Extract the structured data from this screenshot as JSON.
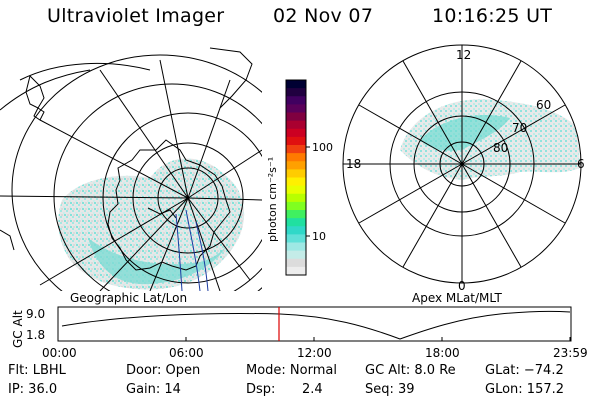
{
  "header": {
    "instrument": "Ultraviolet Imager",
    "date": "02 Nov 07",
    "time": "10:16:25 UT"
  },
  "colorbar": {
    "unit_label": "photon cm⁻²s⁻¹",
    "ticks": [
      "100",
      "10"
    ],
    "colors": [
      "#000033",
      "#200040",
      "#400060",
      "#5a005a",
      "#800040",
      "#aa0030",
      "#cc0022",
      "#e01010",
      "#f04010",
      "#ff7a00",
      "#ffa000",
      "#ffcc00",
      "#fff000",
      "#e8ff00",
      "#b8ff00",
      "#80ff20",
      "#40f060",
      "#20e0a0",
      "#30d8c8",
      "#60e0d8",
      "#9ee8e4",
      "#c4ece8",
      "#dcdcdc",
      "#ededed"
    ]
  },
  "left_panel": {
    "label": "Geographic Lat/Lon"
  },
  "right_panel": {
    "label": "Apex MLat/MLT",
    "lat_labels": [
      "60",
      "70",
      "80"
    ],
    "mlt_labels": [
      "12",
      "18",
      "6",
      "0"
    ]
  },
  "timeline": {
    "ylabel": "GC Alt",
    "yticks": [
      "9.0",
      "1.8"
    ],
    "xticks": [
      "00:00",
      "06:00",
      "12:00",
      "18:00",
      "23:59"
    ],
    "marker_color": "#dd0000"
  },
  "status": {
    "filter": "Flt: LBHL",
    "ip": "IP: 36.0",
    "door": "Door: Open",
    "gain": "Gain: 14",
    "mode": "Mode: Normal",
    "dsp_label": "Dsp:",
    "dsp_value": "2.4",
    "gc_alt": "GC Alt: 8.0 Re",
    "seq": "Seq: 39",
    "glat": "GLat: −74.2",
    "glon": "GLon: 157.2"
  }
}
